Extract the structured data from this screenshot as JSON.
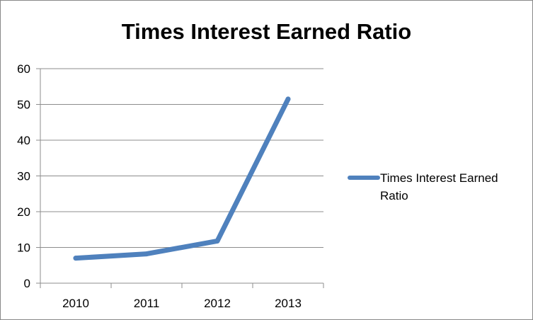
{
  "chart_data": {
    "type": "line",
    "title": "Times Interest Earned Ratio",
    "categories": [
      "2010",
      "2011",
      "2012",
      "2013"
    ],
    "series": [
      {
        "name": "Times Interest Earned Ratio",
        "values": [
          7.0,
          8.2,
          11.8,
          51.5
        ],
        "color": "#4f81bd"
      }
    ],
    "xlabel": "",
    "ylabel": "",
    "ylim": [
      0,
      60
    ],
    "yticks": [
      "0",
      "10",
      "20",
      "30",
      "40",
      "50",
      "60"
    ],
    "grid": true,
    "legend": "right"
  }
}
